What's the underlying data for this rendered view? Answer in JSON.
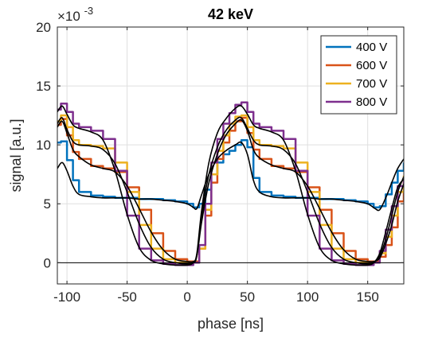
{
  "chart_data": {
    "type": "line",
    "title": "42 keV",
    "xlabel": "phase [ns]",
    "ylabel": "signal [a.u.]",
    "y_exponent_label": "×10",
    "y_exponent_power": "-3",
    "xlim": [
      -108,
      180
    ],
    "ylim": [
      -0.0018,
      0.02
    ],
    "grid": true,
    "legend_position": "top-right",
    "x_ticks": [
      -100,
      -50,
      0,
      50,
      100,
      150
    ],
    "x_tick_labels": [
      "-100",
      "-50",
      "0",
      "50",
      "100",
      "150"
    ],
    "y_ticks": [
      0,
      0.005,
      0.01,
      0.015,
      0.02
    ],
    "y_tick_labels": [
      "0",
      "5",
      "10",
      "15",
      "20"
    ],
    "reference_line": 0,
    "series": [
      {
        "name": "400 V",
        "color": "#0072BD",
        "x": [
          -108,
          -105,
          -100,
          -95,
          -90,
          -80,
          -70,
          -60,
          -50,
          -40,
          -30,
          -20,
          -10,
          0,
          5,
          10,
          15,
          20,
          25,
          30,
          35,
          40,
          45,
          50,
          55,
          60,
          70,
          80,
          90,
          100,
          110,
          120,
          130,
          140,
          150,
          155,
          160,
          165,
          170,
          175,
          180
        ],
        "y": [
          0.0102,
          0.0103,
          0.0087,
          0.007,
          0.006,
          0.0057,
          0.0056,
          0.0055,
          0.0055,
          0.0054,
          0.0054,
          0.0053,
          0.0052,
          0.005,
          0.0047,
          0.005,
          0.0062,
          0.0075,
          0.0085,
          0.0092,
          0.0095,
          0.01,
          0.0104,
          0.0098,
          0.0072,
          0.006,
          0.0057,
          0.0056,
          0.0055,
          0.0055,
          0.0054,
          0.0054,
          0.0053,
          0.0052,
          0.005,
          0.0047,
          0.0048,
          0.0058,
          0.0068,
          0.0078,
          0.0085
        ]
      },
      {
        "name": "600 V",
        "color": "#D95319",
        "x": [
          -108,
          -105,
          -100,
          -95,
          -90,
          -80,
          -70,
          -60,
          -50,
          -40,
          -30,
          -20,
          -10,
          0,
          5,
          10,
          15,
          20,
          25,
          30,
          35,
          40,
          45,
          50,
          55,
          60,
          70,
          80,
          90,
          100,
          110,
          120,
          130,
          140,
          150,
          155,
          160,
          165,
          170,
          175,
          180
        ],
        "y": [
          0.0117,
          0.0122,
          0.0108,
          0.0094,
          0.0088,
          0.0082,
          0.008,
          0.0077,
          0.0064,
          0.0045,
          0.0025,
          0.001,
          0.0003,
          0.0001,
          0.0001,
          0.0012,
          0.004,
          0.0068,
          0.0088,
          0.0102,
          0.0112,
          0.012,
          0.0123,
          0.011,
          0.0096,
          0.0088,
          0.0082,
          0.008,
          0.0077,
          0.0064,
          0.0045,
          0.0025,
          0.001,
          0.0003,
          0.0001,
          0.0001,
          0.0005,
          0.0015,
          0.003,
          0.0052,
          0.0068
        ]
      },
      {
        "name": "700 V",
        "color": "#EDB120",
        "x": [
          -108,
          -105,
          -100,
          -95,
          -90,
          -80,
          -70,
          -60,
          -50,
          -40,
          -30,
          -20,
          -10,
          0,
          5,
          10,
          15,
          20,
          25,
          30,
          35,
          40,
          45,
          50,
          55,
          60,
          70,
          80,
          90,
          100,
          110,
          120,
          130,
          140,
          150,
          155,
          160,
          165,
          170,
          175,
          180
        ],
        "y": [
          0.012,
          0.0125,
          0.0115,
          0.0104,
          0.01,
          0.0099,
          0.0097,
          0.0085,
          0.006,
          0.0032,
          0.0012,
          0.0003,
          0.0,
          -0.0001,
          0.0,
          0.0012,
          0.0045,
          0.0075,
          0.0095,
          0.0108,
          0.0118,
          0.0124,
          0.0125,
          0.0115,
          0.0104,
          0.01,
          0.0099,
          0.0097,
          0.0085,
          0.006,
          0.0032,
          0.0012,
          0.0003,
          0.0,
          -0.0001,
          0.0,
          0.0008,
          0.0022,
          0.004,
          0.006,
          0.0074
        ]
      },
      {
        "name": "800 V",
        "color": "#7E2F8E",
        "x": [
          -108,
          -105,
          -100,
          -95,
          -90,
          -80,
          -70,
          -60,
          -50,
          -40,
          -30,
          -20,
          -10,
          0,
          5,
          10,
          15,
          20,
          25,
          30,
          35,
          40,
          45,
          50,
          55,
          60,
          70,
          80,
          90,
          100,
          110,
          120,
          130,
          140,
          150,
          155,
          160,
          165,
          170,
          175,
          180
        ],
        "y": [
          0.013,
          0.0135,
          0.0128,
          0.0118,
          0.0115,
          0.0112,
          0.0105,
          0.0078,
          0.004,
          0.0012,
          0.0002,
          -0.0001,
          -0.0002,
          -0.0002,
          0.0,
          0.0015,
          0.005,
          0.0085,
          0.0105,
          0.0118,
          0.0127,
          0.0134,
          0.0136,
          0.0128,
          0.0118,
          0.0115,
          0.0112,
          0.0105,
          0.0078,
          0.004,
          0.0012,
          0.0002,
          -0.0001,
          -0.0002,
          -0.0002,
          0.0,
          0.001,
          0.0028,
          0.0048,
          0.0065,
          0.0072
        ]
      }
    ],
    "fits": [
      {
        "color": "#000000",
        "x": [
          -108,
          -104,
          -100,
          -95,
          -90,
          -80,
          -70,
          -60,
          -50,
          -40,
          -30,
          -20,
          -10,
          0,
          5,
          8,
          12,
          18,
          25,
          32,
          40,
          45,
          50,
          55,
          60,
          70,
          80,
          90,
          100,
          110,
          120,
          130,
          140,
          150,
          156,
          160,
          165,
          170,
          175,
          180
        ],
        "y": [
          0.008,
          0.0085,
          0.0078,
          0.0065,
          0.0058,
          0.0056,
          0.0055,
          0.0055,
          0.0055,
          0.0054,
          0.0054,
          0.0053,
          0.0052,
          0.005,
          0.0047,
          0.0046,
          0.0058,
          0.0075,
          0.0088,
          0.0095,
          0.01,
          0.0102,
          0.0092,
          0.007,
          0.006,
          0.0056,
          0.0055,
          0.0055,
          0.0055,
          0.0054,
          0.0054,
          0.0053,
          0.0052,
          0.005,
          0.0046,
          0.0045,
          0.0055,
          0.0068,
          0.008,
          0.0088
        ]
      },
      {
        "color": "#000000",
        "x": [
          -108,
          -104,
          -100,
          -95,
          -90,
          -80,
          -70,
          -60,
          -50,
          -40,
          -30,
          -20,
          -10,
          0,
          5,
          8,
          12,
          18,
          25,
          32,
          40,
          45,
          50,
          55,
          60,
          70,
          80,
          90,
          100,
          110,
          120,
          130,
          140,
          150,
          155,
          160,
          165,
          170,
          175,
          180
        ],
        "y": [
          0.0115,
          0.012,
          0.011,
          0.0096,
          0.009,
          0.0083,
          0.008,
          0.0077,
          0.0065,
          0.0046,
          0.0026,
          0.0011,
          0.0003,
          0.0001,
          0.0001,
          0.0006,
          0.0035,
          0.0068,
          0.0092,
          0.0108,
          0.0118,
          0.0121,
          0.0112,
          0.0096,
          0.0089,
          0.0083,
          0.008,
          0.0077,
          0.0065,
          0.0046,
          0.0026,
          0.0011,
          0.0003,
          0.0001,
          0.0001,
          0.0004,
          0.0016,
          0.0032,
          0.0052,
          0.0067
        ]
      },
      {
        "color": "#000000",
        "x": [
          -108,
          -104,
          -100,
          -95,
          -90,
          -80,
          -70,
          -60,
          -50,
          -40,
          -30,
          -20,
          -10,
          0,
          5,
          8,
          12,
          18,
          25,
          32,
          40,
          45,
          50,
          55,
          60,
          70,
          80,
          90,
          100,
          110,
          120,
          130,
          140,
          150,
          155,
          160,
          165,
          170,
          175,
          180
        ],
        "y": [
          0.0118,
          0.0123,
          0.0113,
          0.0103,
          0.01,
          0.0099,
          0.0096,
          0.0084,
          0.006,
          0.0033,
          0.0013,
          0.0003,
          0.0,
          -0.0001,
          0.0,
          0.0006,
          0.004,
          0.0075,
          0.0098,
          0.0112,
          0.0121,
          0.0123,
          0.0114,
          0.0104,
          0.01,
          0.0099,
          0.0096,
          0.0084,
          0.006,
          0.0033,
          0.0013,
          0.0003,
          0.0,
          -0.0001,
          0.0,
          0.0006,
          0.002,
          0.004,
          0.006,
          0.0073
        ]
      },
      {
        "color": "#000000",
        "x": [
          -108,
          -104,
          -100,
          -95,
          -90,
          -80,
          -70,
          -60,
          -50,
          -40,
          -30,
          -20,
          -10,
          0,
          5,
          8,
          12,
          18,
          25,
          32,
          40,
          45,
          50,
          55,
          60,
          70,
          80,
          90,
          100,
          110,
          120,
          130,
          140,
          150,
          155,
          160,
          165,
          170,
          175,
          180
        ],
        "y": [
          0.0128,
          0.0133,
          0.0126,
          0.0117,
          0.0114,
          0.0111,
          0.0104,
          0.0078,
          0.0041,
          0.0013,
          0.0002,
          -0.0001,
          -0.0002,
          -0.0002,
          0.0,
          0.0008,
          0.0045,
          0.0085,
          0.011,
          0.0122,
          0.0131,
          0.0133,
          0.0126,
          0.0117,
          0.0114,
          0.0111,
          0.0104,
          0.0078,
          0.0041,
          0.0013,
          0.0002,
          -0.0001,
          -0.0002,
          -0.0002,
          0.0,
          0.0008,
          0.0026,
          0.0046,
          0.0064,
          0.0071
        ]
      }
    ]
  }
}
